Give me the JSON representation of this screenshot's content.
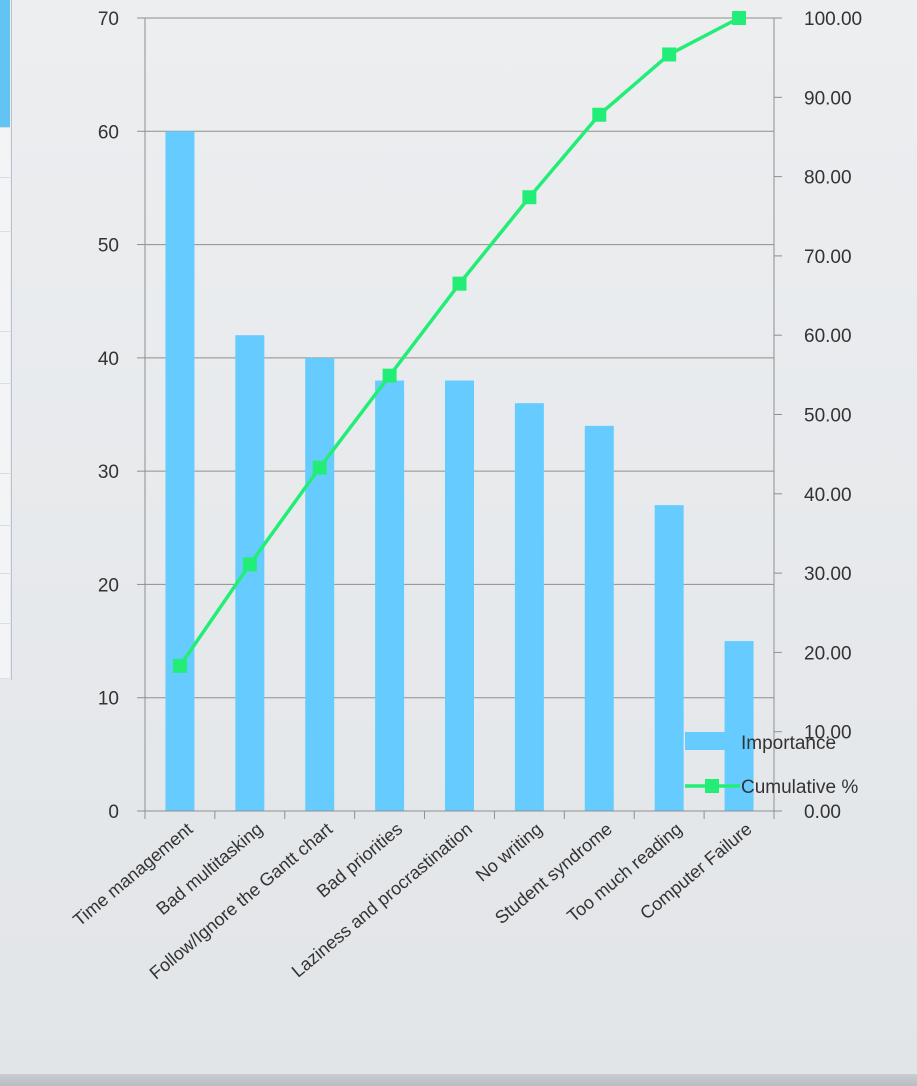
{
  "chart_data": {
    "type": "bar",
    "title": "",
    "xlabel": "",
    "ylabel": "",
    "y2label": "",
    "categories": [
      "Time management",
      "Bad multitasking",
      "Follow/Ignore the Gantt chart",
      "Bad priorities",
      "Laziness and procrastination",
      "No writing",
      "Student syndrome",
      "Too much reading",
      "Computer Failure"
    ],
    "series": [
      {
        "name": "Importance",
        "type": "bar",
        "axis": "left",
        "values": [
          60,
          42,
          40,
          38,
          38,
          36,
          34,
          27,
          15
        ]
      },
      {
        "name": "Cumulative %",
        "type": "line",
        "axis": "right",
        "values": [
          18.3,
          31.1,
          43.3,
          54.9,
          66.5,
          77.4,
          87.8,
          95.4,
          100.0
        ]
      }
    ],
    "ylim": [
      0,
      70
    ],
    "y_ticks": [
      "0",
      "10",
      "20",
      "30",
      "40",
      "50",
      "60",
      "70"
    ],
    "y2lim": [
      0,
      100
    ],
    "y2_ticks": [
      "0.00",
      "10.00",
      "20.00",
      "30.00",
      "40.00",
      "50.00",
      "60.00",
      "70.00",
      "80.00",
      "90.00",
      "100.00"
    ],
    "grid": true,
    "legend_position": "bottom-right",
    "colors": {
      "bar": "#66ccff",
      "line": "#22ee77",
      "marker": "#22ee77",
      "grid": "#8f8f8f",
      "text": "#333333"
    }
  }
}
